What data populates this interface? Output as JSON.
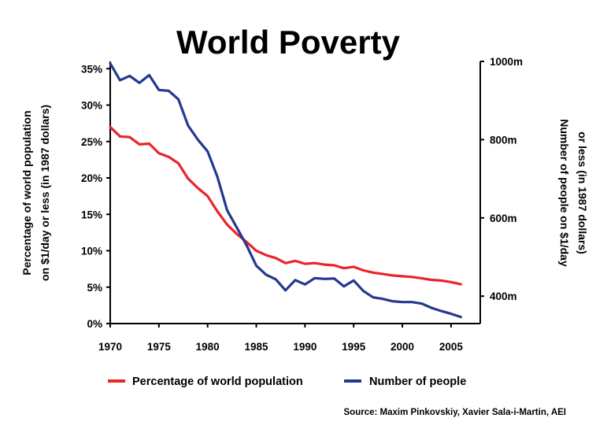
{
  "chart_data": {
    "type": "line",
    "title": "World Poverty",
    "x": [
      1970,
      1971,
      1972,
      1973,
      1974,
      1975,
      1976,
      1977,
      1978,
      1979,
      1980,
      1981,
      1982,
      1983,
      1984,
      1985,
      1986,
      1987,
      1988,
      1989,
      1990,
      1991,
      1992,
      1993,
      1994,
      1995,
      1996,
      1997,
      1998,
      1999,
      2000,
      2001,
      2002,
      2003,
      2004,
      2005,
      2006
    ],
    "xlim": [
      1970,
      2008
    ],
    "x_ticks": [
      "1970",
      "1975",
      "1980",
      "1985",
      "1990",
      "1995",
      "2000",
      "2005"
    ],
    "y_left": {
      "label_lines": [
        "Percentage of world population",
        "on $1/day or less (in 1987 dollars)"
      ],
      "ylim": [
        0,
        36
      ],
      "ticks": [
        0,
        5,
        10,
        15,
        20,
        25,
        30,
        35
      ],
      "tick_labels": [
        "0%",
        "5%",
        "10%",
        "15%",
        "20%",
        "25%",
        "30%",
        "35%"
      ]
    },
    "y_right": {
      "label_lines": [
        "Number of people on $1/day",
        "or less (in 1987 dollars)"
      ],
      "ylim": [
        330,
        1000
      ],
      "ticks": [
        400,
        600,
        800,
        1000
      ],
      "tick_labels": [
        "400m",
        "600m",
        "800m",
        "1000m"
      ]
    },
    "series": [
      {
        "name": "Percentage of world population",
        "axis": "left",
        "color": "#e8262a",
        "values": [
          27.0,
          25.7,
          25.6,
          24.6,
          24.7,
          23.4,
          22.9,
          22.0,
          19.9,
          18.6,
          17.5,
          15.4,
          13.6,
          12.3,
          11.2,
          10.0,
          9.4,
          9.0,
          8.3,
          8.6,
          8.2,
          8.3,
          8.1,
          8.0,
          7.6,
          7.8,
          7.3,
          7.0,
          6.8,
          6.6,
          6.5,
          6.4,
          6.2,
          6.0,
          5.9,
          5.7,
          5.4
        ]
      },
      {
        "name": "Number of people",
        "axis": "right",
        "color": "#24388f",
        "values": [
          995,
          952,
          963,
          945,
          965,
          927,
          925,
          903,
          836,
          800,
          770,
          705,
          620,
          575,
          530,
          478,
          455,
          443,
          415,
          441,
          430,
          446,
          444,
          445,
          425,
          440,
          413,
          397,
          393,
          387,
          385,
          385,
          381,
          370,
          362,
          355,
          347
        ]
      }
    ],
    "legend_position": "bottom",
    "source": "Source: Maxim Pinkovskiy, Xavier Sala-i-Martin, AEI"
  }
}
